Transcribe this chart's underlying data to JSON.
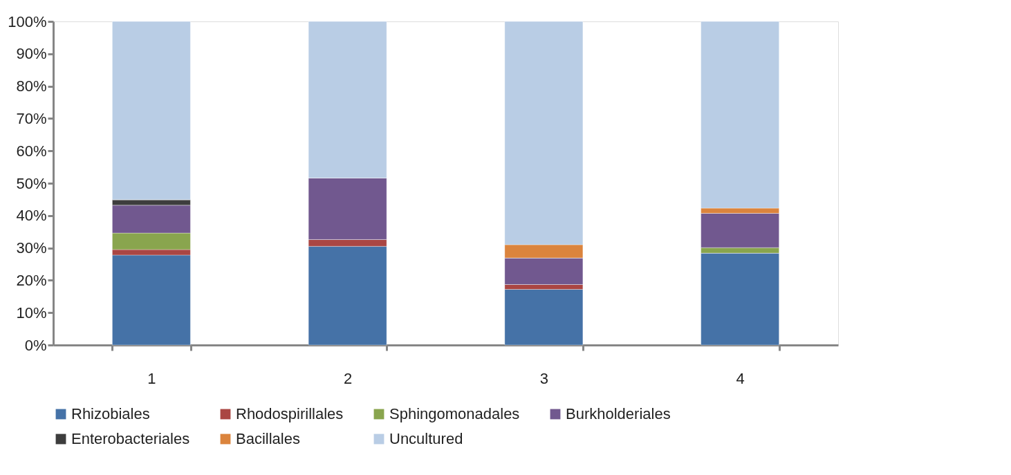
{
  "chart_data": {
    "type": "bar",
    "stacked": true,
    "categories": [
      "1",
      "2",
      "3",
      "4"
    ],
    "series": [
      {
        "name": "Rhizobiales",
        "color": "#4572a7",
        "values": [
          27.8,
          30.5,
          17.2,
          28.4
        ]
      },
      {
        "name": "Rhodospirillales",
        "color": "#aa4643",
        "values": [
          1.7,
          2.1,
          1.5,
          0
        ]
      },
      {
        "name": "Sphingomonadales",
        "color": "#89a54e",
        "values": [
          5.1,
          0,
          0,
          1.7
        ]
      },
      {
        "name": "Burkholderiales",
        "color": "#71588f",
        "values": [
          8.6,
          19.0,
          8.2,
          10.6
        ]
      },
      {
        "name": "Enterobacteriales",
        "color": "#3d3d3d",
        "values": [
          1.7,
          0,
          0,
          0
        ]
      },
      {
        "name": "Bacillales",
        "color": "#db843d",
        "values": [
          0,
          0,
          4.1,
          1.6
        ]
      },
      {
        "name": "Uncultured",
        "color": "#b9cde5",
        "values": [
          55.1,
          48.4,
          69.0,
          57.7
        ]
      }
    ],
    "ylim": [
      0,
      100
    ],
    "yticks": [
      {
        "value": 0,
        "label": "0%"
      },
      {
        "value": 10,
        "label": "10%"
      },
      {
        "value": 20,
        "label": "20%"
      },
      {
        "value": 30,
        "label": "30%"
      },
      {
        "value": 40,
        "label": "40%"
      },
      {
        "value": 50,
        "label": "50%"
      },
      {
        "value": 60,
        "label": "60%"
      },
      {
        "value": 70,
        "label": "70%"
      },
      {
        "value": 80,
        "label": "80%"
      },
      {
        "value": 90,
        "label": "90%"
      },
      {
        "value": 100,
        "label": "100%"
      }
    ],
    "grid": false,
    "legend": "bottom"
  }
}
